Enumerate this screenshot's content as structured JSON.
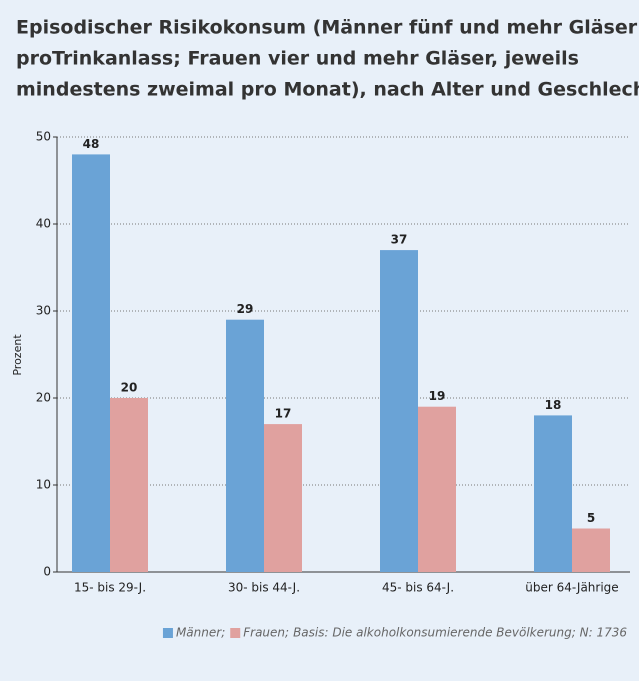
{
  "chart_data": {
    "type": "bar",
    "title": [
      "Episodischer Risikokonsum (Männer fünf und mehr Gläser",
      "proTrinkanlass; Frauen vier und mehr Gläser, jeweils",
      "mindestens zweimal pro Monat), nach Alter und Geschlecht"
    ],
    "ylabel": "Prozent",
    "categories": [
      "15- bis 29-J.",
      "30- bis 44-J.",
      "45- bis 64-J.",
      "über 64-Jährige"
    ],
    "series": [
      {
        "name": "Männer;",
        "color": "#6aa3d6",
        "values": [
          48,
          29,
          37,
          18
        ]
      },
      {
        "name": "Frauen;",
        "color": "#e0a19f",
        "values": [
          20,
          17,
          19,
          5
        ]
      }
    ],
    "note": "Basis: Die alkoholkonsumierende Bevölkerung; N: 1736",
    "ylim": [
      0,
      50
    ],
    "yticks": [
      0,
      10,
      20,
      30,
      40,
      50
    ],
    "grid": true
  }
}
